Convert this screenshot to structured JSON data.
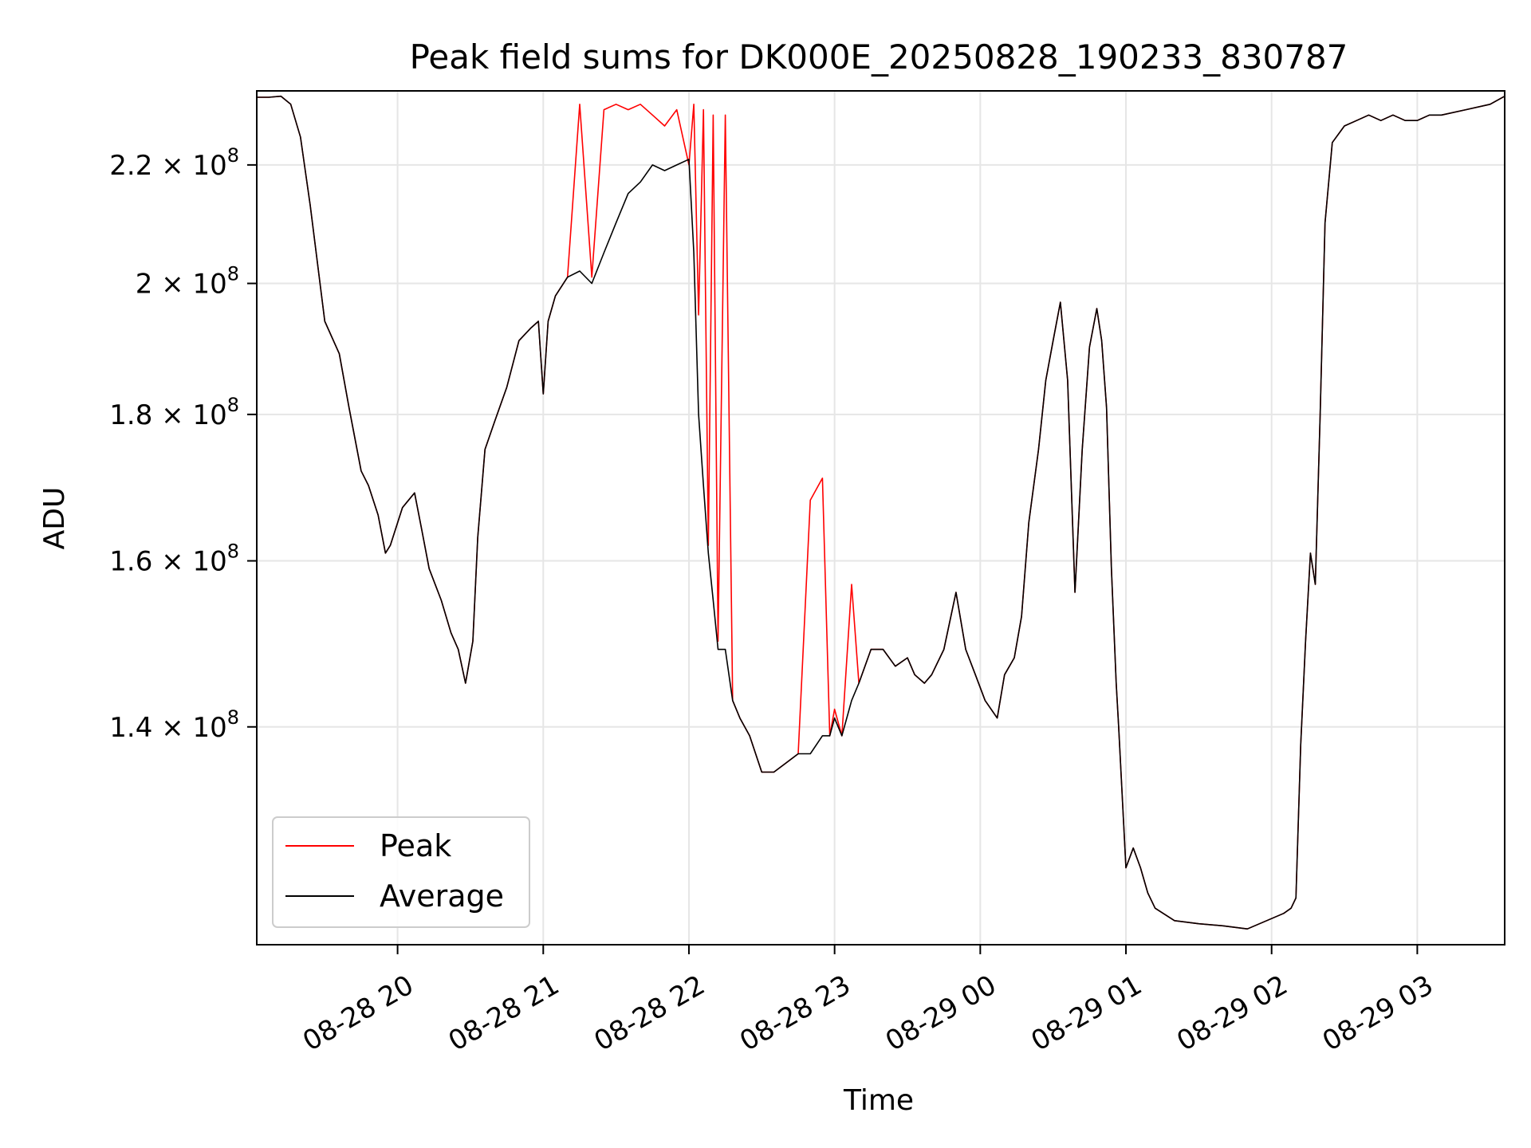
{
  "chart_data": {
    "type": "line",
    "title": "Peak field sums for DK000E_20250828_190233_830787",
    "xlabel": "Time",
    "ylabel": "ADU",
    "x_axis_kind": "time",
    "xlim": [
      "2025-08-28 19:02",
      "2025-08-29 03:36"
    ],
    "ylim": [
      117500000.0,
      233500000.0
    ],
    "yscale": "log",
    "grid": true,
    "legend": "lower-left",
    "x_ticks": [
      "08-28 20",
      "08-28 21",
      "08-28 22",
      "08-28 23",
      "08-29 00",
      "08-29 01",
      "08-29 02",
      "08-29 03"
    ],
    "y_ticks": [
      {
        "value": 140000000.0,
        "mantissa": "1.4",
        "exp": "8"
      },
      {
        "value": 160000000.0,
        "mantissa": "1.6",
        "exp": "8"
      },
      {
        "value": 180000000.0,
        "mantissa": "1.8",
        "exp": "8"
      },
      {
        "value": 200000000.0,
        "mantissa": "2",
        "exp": "8"
      },
      {
        "value": 220000000.0,
        "mantissa": "2.2",
        "exp": "8"
      }
    ],
    "x": [
      "2025-08-28 19:02",
      "2025-08-28 19:07",
      "2025-08-28 19:12",
      "2025-08-28 19:16",
      "2025-08-28 19:20",
      "2025-08-28 19:24",
      "2025-08-28 19:30",
      "2025-08-28 19:36",
      "2025-08-28 19:40",
      "2025-08-28 19:45",
      "2025-08-28 19:48",
      "2025-08-28 19:52",
      "2025-08-28 19:55",
      "2025-08-28 19:57",
      "2025-08-28 20:02",
      "2025-08-28 20:07",
      "2025-08-28 20:10",
      "2025-08-28 20:13",
      "2025-08-28 20:18",
      "2025-08-28 20:22",
      "2025-08-28 20:25",
      "2025-08-28 20:28",
      "2025-08-28 20:31",
      "2025-08-28 20:33",
      "2025-08-28 20:36",
      "2025-08-28 20:40",
      "2025-08-28 20:45",
      "2025-08-28 20:50",
      "2025-08-28 20:55",
      "2025-08-28 20:58",
      "2025-08-28 21:00",
      "2025-08-28 21:02",
      "2025-08-28 21:05",
      "2025-08-28 21:10",
      "2025-08-28 21:15",
      "2025-08-28 21:20",
      "2025-08-28 21:25",
      "2025-08-28 21:30",
      "2025-08-28 21:35",
      "2025-08-28 21:40",
      "2025-08-28 21:45",
      "2025-08-28 21:50",
      "2025-08-28 21:55",
      "2025-08-28 22:00",
      "2025-08-28 22:02",
      "2025-08-28 22:04",
      "2025-08-28 22:06",
      "2025-08-28 22:08",
      "2025-08-28 22:10",
      "2025-08-28 22:12",
      "2025-08-28 22:15",
      "2025-08-28 22:18",
      "2025-08-28 22:21",
      "2025-08-28 22:25",
      "2025-08-28 22:30",
      "2025-08-28 22:35",
      "2025-08-28 22:40",
      "2025-08-28 22:45",
      "2025-08-28 22:50",
      "2025-08-28 22:55",
      "2025-08-28 22:58",
      "2025-08-28 23:00",
      "2025-08-28 23:03",
      "2025-08-28 23:07",
      "2025-08-28 23:10",
      "2025-08-28 23:15",
      "2025-08-28 23:20",
      "2025-08-28 23:25",
      "2025-08-28 23:30",
      "2025-08-28 23:33",
      "2025-08-28 23:37",
      "2025-08-28 23:40",
      "2025-08-28 23:45",
      "2025-08-28 23:50",
      "2025-08-28 23:54",
      "2025-08-28 23:58",
      "2025-08-29 00:02",
      "2025-08-29 00:07",
      "2025-08-29 00:10",
      "2025-08-29 00:14",
      "2025-08-29 00:17",
      "2025-08-29 00:20",
      "2025-08-29 00:24",
      "2025-08-29 00:27",
      "2025-08-29 00:30",
      "2025-08-29 00:33",
      "2025-08-29 00:36",
      "2025-08-29 00:39",
      "2025-08-29 00:42",
      "2025-08-29 00:45",
      "2025-08-29 00:48",
      "2025-08-29 00:50",
      "2025-08-29 00:52",
      "2025-08-29 00:54",
      "2025-08-29 00:56",
      "2025-08-29 00:57",
      "2025-08-29 01:00",
      "2025-08-29 01:03",
      "2025-08-29 01:06",
      "2025-08-29 01:09",
      "2025-08-29 01:12",
      "2025-08-29 01:20",
      "2025-08-29 01:30",
      "2025-08-29 01:40",
      "2025-08-29 01:50",
      "2025-08-29 02:00",
      "2025-08-29 02:05",
      "2025-08-29 02:08",
      "2025-08-29 02:10",
      "2025-08-29 02:12",
      "2025-08-29 02:14",
      "2025-08-29 02:16",
      "2025-08-29 02:18",
      "2025-08-29 02:20",
      "2025-08-29 02:22",
      "2025-08-29 02:25",
      "2025-08-29 02:30",
      "2025-08-29 02:35",
      "2025-08-29 02:40",
      "2025-08-29 02:45",
      "2025-08-29 02:50",
      "2025-08-29 02:55",
      "2025-08-29 03:00",
      "2025-08-29 03:05",
      "2025-08-29 03:10",
      "2025-08-29 03:20",
      "2025-08-29 03:30",
      "2025-08-29 03:36"
    ],
    "series": [
      {
        "name": "Peak",
        "color": "#ff0000",
        "values": [
          232300000.0,
          232300000.0,
          232500000.0,
          231000000.0,
          225000000.0,
          213000000.0,
          194000000.0,
          189000000.0,
          181000000.0,
          172000000.0,
          170000000.0,
          166000000.0,
          161000000.0,
          162000000.0,
          167000000.0,
          169000000.0,
          164000000.0,
          159000000.0,
          155000000.0,
          151000000.0,
          149000000.0,
          145000000.0,
          150000000.0,
          163000000.0,
          175000000.0,
          179000000.0,
          184000000.0,
          191000000.0,
          193000000.0,
          194000000.0,
          183000000.0,
          194000000.0,
          198000000.0,
          201000000.0,
          231000000.0,
          201000000.0,
          230000000.0,
          231000000.0,
          230000000.0,
          231000000.0,
          229000000.0,
          227000000.0,
          230000000.0,
          220000000.0,
          231000000.0,
          195000000.0,
          230000000.0,
          162000000.0,
          229000000.0,
          150000000.0,
          229000000.0,
          143000000.0,
          141000000.0,
          139000000.0,
          135000000.0,
          135000000.0,
          136000000.0,
          137000000.0,
          168000000.0,
          171000000.0,
          139000000.0,
          142000000.0,
          139000000.0,
          157000000.0,
          145000000.0,
          149000000.0,
          149000000.0,
          147000000.0,
          148000000.0,
          146000000.0,
          145000000.0,
          146000000.0,
          149000000.0,
          156000000.0,
          149000000.0,
          146000000.0,
          143000000.0,
          141000000.0,
          146000000.0,
          148000000.0,
          153000000.0,
          165000000.0,
          175000000.0,
          185000000.0,
          191000000.0,
          197000000.0,
          185000000.0,
          156000000.0,
          175000000.0,
          190000000.0,
          196000000.0,
          191000000.0,
          181000000.0,
          159000000.0,
          145000000.0,
          140000000.0,
          125000000.0,
          127000000.0,
          125000000.0,
          122500000.0,
          121000000.0,
          119800000.0,
          119500000.0,
          119300000.0,
          119000000.0,
          120000000.0,
          120500000.0,
          121000000.0,
          122000000.0,
          138000000.0,
          150000000.0,
          161000000.0,
          157000000.0,
          180000000.0,
          210000000.0,
          224000000.0,
          227000000.0,
          228000000.0,
          229000000.0,
          228000000.0,
          229000000.0,
          228000000.0,
          228000000.0,
          229000000.0,
          229000000.0,
          230000000.0,
          231000000.0,
          232500000.0
        ]
      },
      {
        "name": "Average",
        "color": "#000000",
        "values": [
          232300000.0,
          232300000.0,
          232500000.0,
          231000000.0,
          225000000.0,
          213000000.0,
          194000000.0,
          189000000.0,
          181000000.0,
          172000000.0,
          170000000.0,
          166000000.0,
          161000000.0,
          162000000.0,
          167000000.0,
          169000000.0,
          164000000.0,
          159000000.0,
          155000000.0,
          151000000.0,
          149000000.0,
          145000000.0,
          150000000.0,
          163000000.0,
          175000000.0,
          179000000.0,
          184000000.0,
          191000000.0,
          193000000.0,
          194000000.0,
          183000000.0,
          194000000.0,
          198000000.0,
          201000000.0,
          202000000.0,
          200000000.0,
          205000000.0,
          210000000.0,
          215000000.0,
          217000000.0,
          220000000.0,
          219000000.0,
          220000000.0,
          221000000.0,
          205000000.0,
          180000000.0,
          170000000.0,
          161000000.0,
          155000000.0,
          149000000.0,
          149000000.0,
          143000000.0,
          141000000.0,
          139000000.0,
          135000000.0,
          135000000.0,
          136000000.0,
          137000000.0,
          137000000.0,
          139000000.0,
          139000000.0,
          141000000.0,
          139000000.0,
          143000000.0,
          145000000.0,
          149000000.0,
          149000000.0,
          147000000.0,
          148000000.0,
          146000000.0,
          145000000.0,
          146000000.0,
          149000000.0,
          156000000.0,
          149000000.0,
          146000000.0,
          143000000.0,
          141000000.0,
          146000000.0,
          148000000.0,
          153000000.0,
          165000000.0,
          175000000.0,
          185000000.0,
          191000000.0,
          197000000.0,
          185000000.0,
          156000000.0,
          175000000.0,
          190000000.0,
          196000000.0,
          191000000.0,
          181000000.0,
          159000000.0,
          145000000.0,
          140000000.0,
          125000000.0,
          127000000.0,
          125000000.0,
          122500000.0,
          121000000.0,
          119800000.0,
          119500000.0,
          119300000.0,
          119000000.0,
          120000000.0,
          120500000.0,
          121000000.0,
          122000000.0,
          138000000.0,
          150000000.0,
          161000000.0,
          157000000.0,
          180000000.0,
          210000000.0,
          224000000.0,
          227000000.0,
          228000000.0,
          229000000.0,
          228000000.0,
          229000000.0,
          228000000.0,
          228000000.0,
          229000000.0,
          229000000.0,
          230000000.0,
          231000000.0,
          232500000.0
        ]
      }
    ]
  }
}
